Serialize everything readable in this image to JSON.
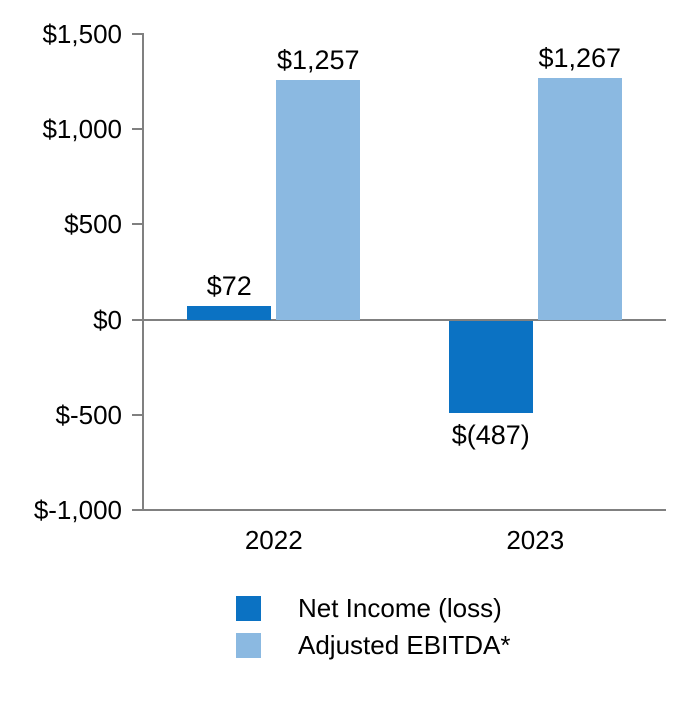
{
  "chart_data": {
    "type": "bar",
    "title": "",
    "xlabel": "",
    "ylabel": "",
    "categories": [
      "2022",
      "2023"
    ],
    "series": [
      {
        "name": "Net Income (loss)",
        "color": "#0B72C3",
        "values": [
          72,
          -487
        ],
        "value_labels": [
          "$72",
          "$(487)"
        ]
      },
      {
        "name": "Adjusted EBITDA*",
        "color": "#8BB9E1",
        "values": [
          1257,
          1267
        ],
        "value_labels": [
          "$1,257",
          "$1,267"
        ]
      }
    ],
    "y_axis": {
      "ylim": [
        -1000,
        1500
      ],
      "tick_values": [
        1500,
        1000,
        500,
        0,
        -500,
        -1000
      ],
      "tick_labels": [
        "$1,500",
        "$1,000",
        "$500",
        "$0",
        "$-500",
        "$-1,000"
      ]
    },
    "legend": {
      "position": "bottom",
      "entries": [
        "Net Income (loss)",
        "Adjusted EBITDA*"
      ]
    },
    "grid": false,
    "zero_line": true,
    "axis_color": "#808080",
    "text_color": "#000000",
    "background": "#FFFFFF"
  }
}
